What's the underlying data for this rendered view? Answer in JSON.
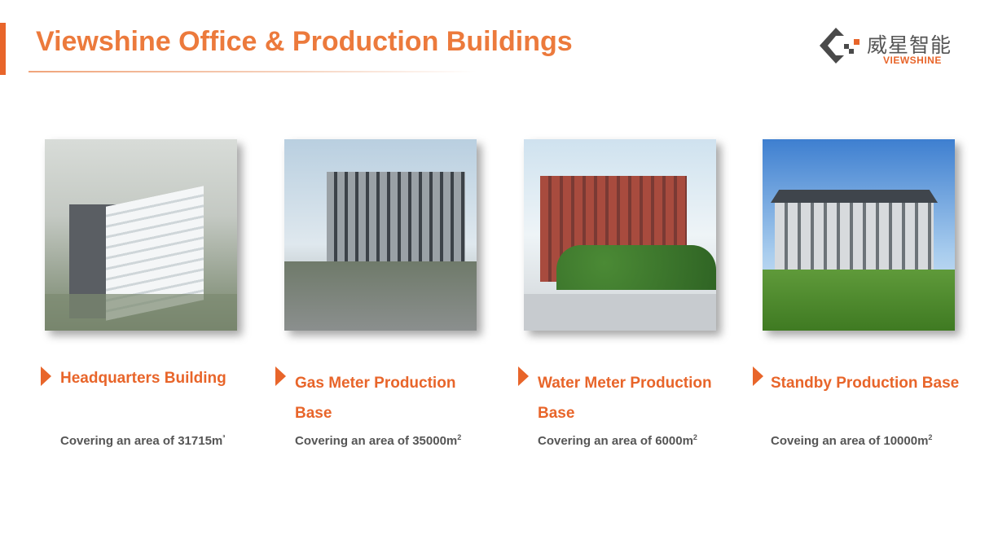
{
  "title": "Viewshine Office & Production Buildings",
  "logo": {
    "cn": "威星智能",
    "en": "VIEWSHINE"
  },
  "colors": {
    "accent": "#e8652a",
    "title": "#ec7a3c",
    "body_text": "#555555"
  },
  "buildings": [
    {
      "name": "Headquarters Building",
      "area_prefix": "Covering an area of 31715m",
      "area_sup": "³",
      "image": "headquarters-rendering"
    },
    {
      "name": "Gas Meter Production Base",
      "area_prefix": "Covering an area of 35000m",
      "area_sup": "2",
      "image": "gas-meter-factory-photo"
    },
    {
      "name": "Water Meter Production Base",
      "area_prefix": "Covering an area of 6000m",
      "area_sup": "2",
      "image": "water-meter-factory-photo"
    },
    {
      "name": "Standby Production Base",
      "area_prefix": "Coveing an area of 10000m",
      "area_sup": "2",
      "image": "standby-base-photo"
    }
  ]
}
